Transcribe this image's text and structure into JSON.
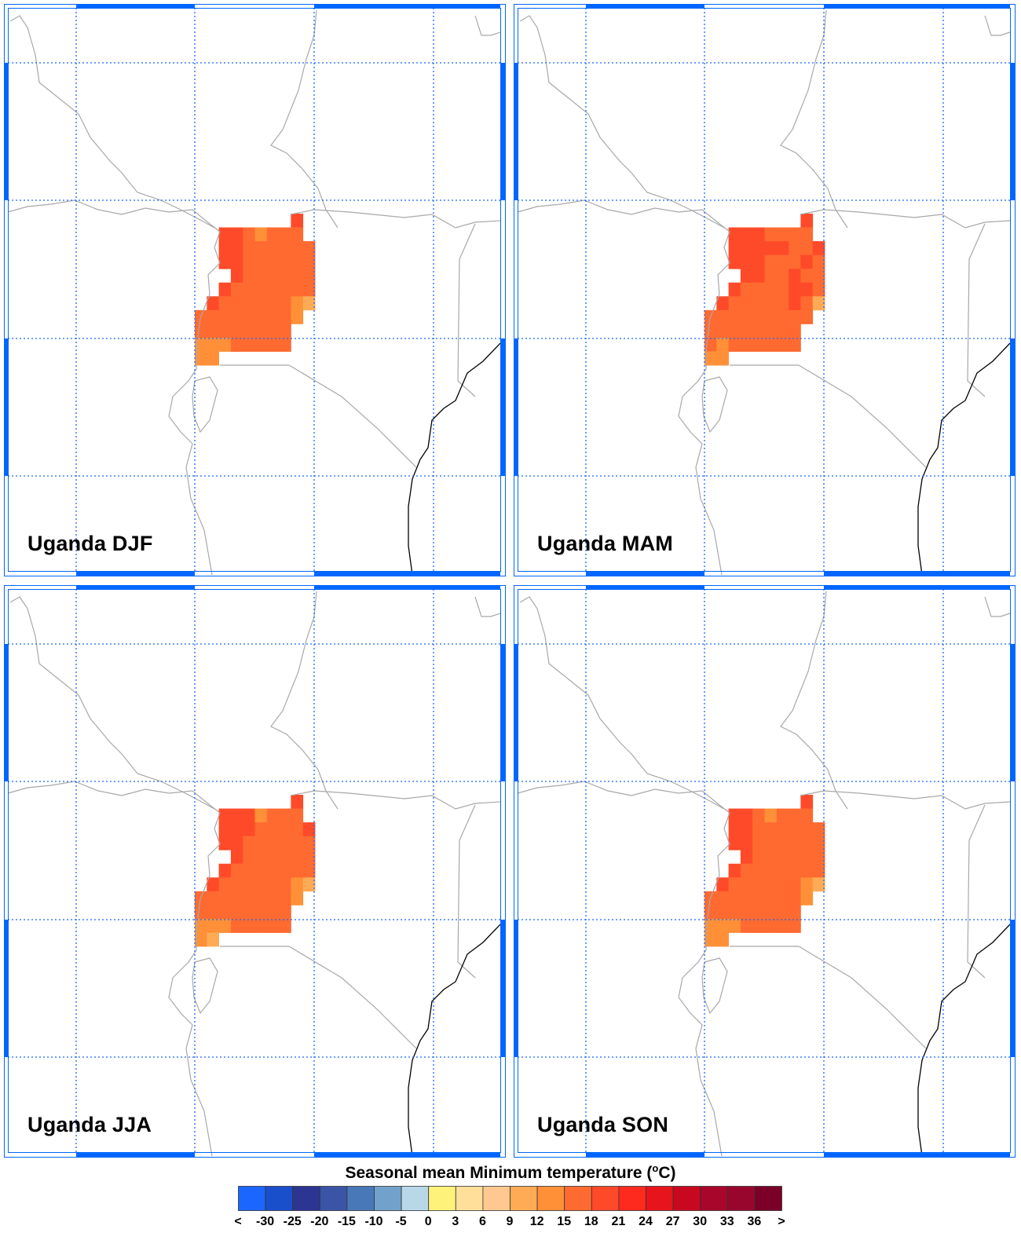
{
  "panels": [
    {
      "title": "Uganda DJF",
      "grid": [
        "........a.",
        "..aabcbbb.",
        "..aabbbbbb",
        "..aabbbbbb",
        "...abbbbbb",
        "..abbbbbbb",
        ".abbbbbbcd",
        "bbbbbbbbc.",
        "bbbbbbbb..",
        "cccbbbbb..",
        "cc........"
      ]
    },
    {
      "title": "Uganda MAM",
      "grid": [
        "........a.",
        "..aaabbbb.",
        "..aaaaabba",
        "..aaabbbab",
        "...aabbabb",
        "..abbbbaab",
        ".abbbbbabd",
        "bbbbbbbbb.",
        "bbbbbbbb..",
        "bcbbbbbb..",
        "cc........"
      ]
    },
    {
      "title": "Uganda JJA",
      "grid": [
        "........a.",
        "..aaacbbb.",
        "..aaabbbba",
        "..aabbbbbb",
        "...abbbbbb",
        "..abbbbbbb",
        ".abbbbbbcd",
        "bbbbbbbbc.",
        "bbbbbbbb..",
        "cccbbbbb..",
        "cd........"
      ]
    },
    {
      "title": "Uganda SON",
      "grid": [
        "........a.",
        "..aabcbbb.",
        "..aabbbbbb",
        "..aabbbbbb",
        "...abbbbbb",
        "..abbbbbbb",
        ".abbbbbbcd",
        "bbbbbbbbc.",
        "bbbbbbbb..",
        "cccbbbbb..",
        "cc........"
      ]
    }
  ],
  "grid_legend": {
    "a": {
      "range": "18 to 21",
      "color": "#ff4a2a"
    },
    "b": {
      "range": "15 to 18",
      "color": "#ff6a30"
    },
    "c": {
      "range": "12 to 15",
      "color": "#ff9038"
    },
    "d": {
      "range": "9 to 12",
      "color": "#ffab55"
    }
  },
  "colorbar": {
    "title": "Seasonal mean Minimum temperature (",
    "title_unit_sup": "o",
    "title_unit": "C)",
    "labels": [
      "<",
      "-30",
      "-25",
      "-20",
      "-15",
      "-10",
      "-5",
      "0",
      "3",
      "6",
      "9",
      "12",
      "15",
      "18",
      "21",
      "24",
      "27",
      "30",
      "33",
      "36",
      ">"
    ],
    "colors": [
      "#1a66ff",
      "#1a4fcc",
      "#2d3592",
      "#3a55a5",
      "#4878b8",
      "#72a2cc",
      "#b8d8ea",
      "#fff27a",
      "#ffdf9a",
      "#ffc890",
      "#ffab55",
      "#ff9038",
      "#ff6a30",
      "#ff4a2a",
      "#ff2a1e",
      "#e8141c",
      "#c8081e",
      "#a8062a",
      "#98062e",
      "#7a0028"
    ]
  },
  "colors": {
    "frame": "#0066ff",
    "gridline": "#1a66ff",
    "border": "#a8a8a8",
    "coastline": "#000000"
  }
}
